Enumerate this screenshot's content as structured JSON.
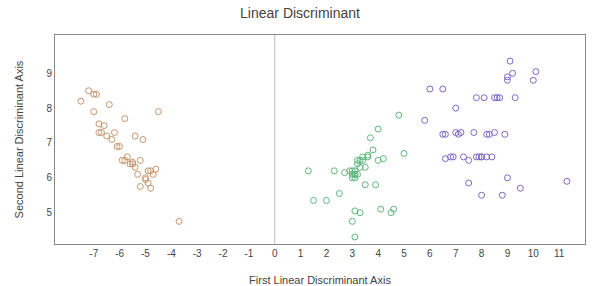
{
  "chart_data": {
    "type": "scatter",
    "title": "Linear Discriminant",
    "xlabel": "First Linear Discriminant Axis",
    "ylabel": "Second Linear Discriminant Axis",
    "xlim": [
      -8.5,
      12.0
    ],
    "ylim": [
      4.1,
      10.1
    ],
    "xticks": [
      -7,
      -6,
      -5,
      -4,
      -3,
      -2,
      -1,
      0,
      1,
      2,
      3,
      4,
      5,
      6,
      7,
      8,
      9,
      10,
      11
    ],
    "yticks": [
      5,
      6,
      7,
      8,
      9
    ],
    "grid": false,
    "marker": "circle-open",
    "vline": {
      "x": 0,
      "color": "#bbbbbb"
    },
    "series": [
      {
        "color": "#c8956c",
        "x": [
          -7.5,
          -7.2,
          -7.0,
          -7.0,
          -6.9,
          -6.8,
          -6.8,
          -6.7,
          -6.6,
          -6.5,
          -6.4,
          -6.3,
          -6.2,
          -6.1,
          -6.0,
          -5.9,
          -5.8,
          -5.8,
          -5.7,
          -5.6,
          -5.5,
          -5.5,
          -5.4,
          -5.4,
          -5.3,
          -5.2,
          -5.2,
          -5.1,
          -5.0,
          -5.0,
          -4.9,
          -4.9,
          -4.8,
          -4.8,
          -4.7,
          -4.6,
          -4.5,
          -3.7
        ],
        "values": [
          8.2,
          8.5,
          8.4,
          7.9,
          8.4,
          7.55,
          7.3,
          7.3,
          7.5,
          7.2,
          8.1,
          7.1,
          7.3,
          6.9,
          6.9,
          6.5,
          7.7,
          6.5,
          6.6,
          6.4,
          6.45,
          6.4,
          6.3,
          7.2,
          6.1,
          6.5,
          5.75,
          7.1,
          5.95,
          6.0,
          5.85,
          6.2,
          5.7,
          6.2,
          6.1,
          6.25,
          7.9,
          4.75
        ]
      },
      {
        "color": "#5cb87a",
        "x": [
          1.3,
          1.5,
          2.0,
          2.3,
          2.5,
          2.7,
          2.9,
          3.0,
          3.0,
          3.0,
          3.1,
          3.1,
          3.1,
          3.1,
          3.1,
          3.2,
          3.2,
          3.2,
          3.3,
          3.3,
          3.4,
          3.4,
          3.5,
          3.5,
          3.6,
          3.6,
          3.7,
          3.8,
          3.9,
          4.0,
          4.0,
          4.1,
          4.2,
          4.5,
          4.6,
          4.8,
          3.3,
          5.0,
          3.0,
          3.1
        ],
        "values": [
          6.2,
          5.35,
          5.35,
          6.2,
          5.55,
          6.15,
          6.2,
          6.0,
          6.1,
          6.2,
          6.2,
          6.1,
          6.0,
          6.1,
          5.05,
          6.4,
          6.5,
          6.1,
          6.3,
          6.5,
          6.6,
          6.5,
          6.3,
          5.8,
          6.65,
          6.6,
          7.15,
          6.8,
          5.8,
          6.5,
          7.4,
          5.1,
          6.55,
          5.0,
          5.1,
          7.8,
          5.0,
          6.7,
          4.75,
          4.3
        ]
      },
      {
        "color": "#7b68c8",
        "x": [
          5.8,
          6.0,
          6.5,
          6.5,
          6.6,
          6.6,
          6.8,
          6.9,
          7.0,
          7.0,
          7.1,
          7.2,
          7.3,
          7.5,
          7.5,
          7.7,
          7.8,
          7.8,
          7.9,
          8.0,
          8.0,
          8.0,
          8.1,
          8.2,
          8.2,
          8.3,
          8.4,
          8.5,
          8.5,
          8.6,
          8.7,
          8.8,
          8.9,
          9.0,
          9.0,
          9.0,
          9.1,
          9.2,
          9.3,
          9.5,
          10.0,
          10.1,
          11.3
        ],
        "values": [
          7.65,
          8.55,
          7.25,
          8.55,
          6.55,
          7.25,
          6.6,
          6.6,
          7.3,
          8.0,
          7.25,
          7.3,
          6.6,
          5.85,
          6.5,
          7.3,
          6.6,
          8.3,
          6.6,
          5.5,
          6.6,
          6.6,
          8.3,
          6.6,
          7.25,
          7.25,
          6.6,
          8.3,
          7.3,
          8.3,
          8.3,
          5.5,
          7.25,
          6.0,
          8.8,
          8.9,
          9.35,
          9.0,
          8.3,
          5.7,
          8.8,
          9.05,
          5.9
        ]
      }
    ]
  }
}
